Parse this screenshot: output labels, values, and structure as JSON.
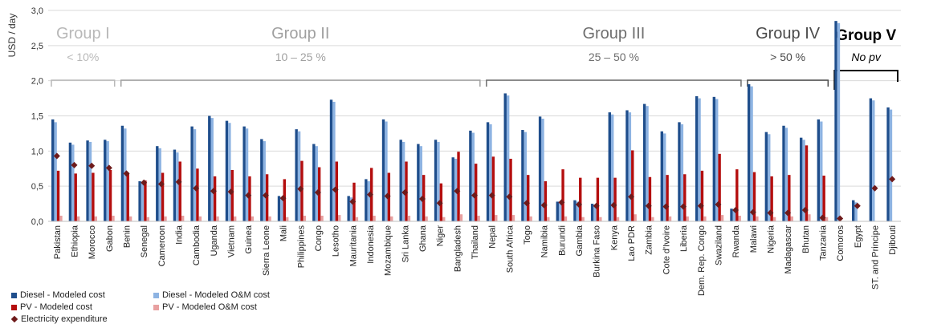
{
  "chart_data": {
    "type": "bar",
    "ylabel": "USD / day",
    "ylim": [
      0,
      3.0
    ],
    "y_ticks": [
      "0,0",
      "0,5",
      "1,0",
      "1,5",
      "2,0",
      "2,5",
      "3,0"
    ],
    "grid": true,
    "legend_position": "bottom-left",
    "categories": [
      "Pakistan",
      "Ethiopia",
      "Morocco",
      "Gabon",
      "Benin",
      "Senegal",
      "Cameroon",
      "India",
      "Cambodia",
      "Uganda",
      "Vietnam",
      "Guinea",
      "Sierra Leone",
      "Mali",
      "Philippines",
      "Congo",
      "Lesotho",
      "Mauritania",
      "Indonesia",
      "Mozambique",
      "Sri Lanka",
      "Ghana",
      "Niger",
      "Bangladesh",
      "Thailand",
      "Nepal",
      "South Africa",
      "Togo",
      "Namibia",
      "Burundi",
      "Gambia",
      "Burkina Faso",
      "Kenya",
      "Lao PDR",
      "Zambia",
      "Cote d'Ivoire",
      "Liberia",
      "Dem. Rep. Congo",
      "Swaziland",
      "Rwanda",
      "Malawi",
      "Nigeria",
      "Madagascar",
      "Bhutan",
      "Tanzania",
      "Comoros",
      "Egypt",
      "ST. and Principe",
      "Djibouti"
    ],
    "series": [
      {
        "name": "Diesel - Modeled cost",
        "color": "#1f4e8c",
        "values": [
          1.45,
          1.12,
          1.15,
          1.16,
          1.36,
          0.57,
          1.07,
          1.02,
          1.35,
          1.5,
          1.43,
          1.35,
          1.17,
          0.36,
          1.31,
          1.1,
          1.73,
          0.36,
          0.6,
          1.45,
          1.16,
          1.1,
          1.16,
          0.91,
          1.29,
          1.41,
          1.82,
          1.3,
          1.49,
          0.28,
          0.3,
          0.25,
          1.55,
          1.58,
          1.67,
          1.28,
          1.41,
          1.78,
          1.77,
          0.18,
          1.95,
          1.27,
          1.36,
          1.19,
          1.45,
          2.85,
          0.3,
          1.75,
          1.62
        ]
      },
      {
        "name": "Diesel - Modeled O&M cost",
        "color": "#8db3e2",
        "values": [
          1.41,
          1.09,
          1.13,
          1.14,
          1.32,
          0.55,
          1.04,
          0.98,
          1.31,
          1.47,
          1.4,
          1.32,
          1.14,
          0.34,
          1.28,
          1.07,
          1.7,
          0.34,
          0.57,
          1.42,
          1.13,
          1.07,
          1.13,
          0.89,
          1.26,
          1.38,
          1.79,
          1.27,
          1.46,
          0.26,
          0.28,
          0.23,
          1.52,
          1.55,
          1.64,
          1.25,
          1.38,
          1.75,
          1.74,
          0.16,
          1.92,
          1.24,
          1.33,
          1.16,
          1.42,
          2.82,
          0.27,
          1.72,
          1.59
        ]
      },
      {
        "name": "PV - Modeled cost",
        "color": "#b40e0e",
        "values": [
          0.72,
          0.68,
          0.69,
          0.73,
          0.69,
          0.58,
          0.69,
          0.85,
          0.75,
          0.64,
          0.73,
          0.64,
          0.67,
          0.6,
          0.86,
          0.77,
          0.85,
          0.55,
          0.76,
          0.69,
          0.85,
          0.66,
          0.54,
          0.99,
          0.82,
          0.92,
          0.89,
          0.66,
          0.57,
          0.74,
          0.62,
          0.62,
          0.62,
          1.01,
          0.63,
          0.66,
          0.67,
          0.72,
          0.96,
          0.74,
          0.7,
          0.64,
          0.66,
          1.08,
          0.65,
          null,
          null,
          null,
          null
        ]
      },
      {
        "name": "PV - Modeled O&M cost",
        "color": "#e8a0a0",
        "values": [
          0.08,
          0.07,
          0.07,
          0.08,
          0.07,
          0.06,
          0.07,
          0.08,
          0.07,
          0.07,
          0.07,
          0.07,
          0.07,
          0.06,
          0.08,
          0.08,
          0.09,
          0.06,
          0.08,
          0.07,
          0.08,
          0.07,
          0.06,
          0.1,
          0.08,
          0.09,
          0.09,
          0.07,
          0.06,
          0.07,
          0.06,
          0.06,
          0.06,
          0.1,
          0.06,
          0.07,
          0.07,
          0.07,
          0.09,
          0.08,
          0.07,
          0.06,
          0.07,
          0.1,
          0.06,
          null,
          null,
          null,
          null
        ]
      },
      {
        "name": "Electricity expenditure",
        "color": "#6e1a1a",
        "marker": "diamond",
        "values": [
          0.93,
          0.8,
          0.79,
          0.76,
          0.68,
          0.55,
          0.53,
          0.56,
          0.47,
          0.43,
          0.42,
          0.37,
          0.37,
          0.33,
          0.46,
          0.41,
          0.45,
          0.28,
          0.38,
          0.36,
          0.41,
          0.32,
          0.26,
          0.43,
          0.37,
          0.37,
          0.35,
          0.26,
          0.23,
          0.27,
          0.24,
          0.22,
          0.23,
          0.35,
          0.22,
          0.21,
          0.21,
          0.22,
          0.24,
          0.16,
          0.13,
          0.12,
          0.12,
          0.16,
          0.05,
          0.04,
          0.22,
          0.47,
          0.6
        ]
      }
    ],
    "groups": [
      {
        "name": "Group I",
        "range": "< 10%",
        "start": 0,
        "end": 3,
        "color": "#b8b8b8"
      },
      {
        "name": "Group II",
        "range": "10 – 25 %",
        "start": 4,
        "end": 24,
        "color": "#a0a0a0"
      },
      {
        "name": "Group III",
        "range": "25 – 50 %",
        "start": 25,
        "end": 39,
        "color": "#6f6f6f"
      },
      {
        "name": "Group IV",
        "range": "> 50 %",
        "start": 40,
        "end": 44,
        "color": "#4a4a4a"
      },
      {
        "name": "Group V",
        "range": "No pv",
        "start": 45,
        "end": 48,
        "color": "#000000"
      }
    ]
  },
  "legend": {
    "items": [
      {
        "label": "Diesel - Modeled cost",
        "color": "#1f4e8c",
        "shape": "square"
      },
      {
        "label": "Diesel - Modeled O&M cost",
        "color": "#8db3e2",
        "shape": "square"
      },
      {
        "label": "PV - Modeled cost",
        "color": "#b40e0e",
        "shape": "square"
      },
      {
        "label": "PV - Modeled O&M cost",
        "color": "#e8a0a0",
        "shape": "square"
      },
      {
        "label": "Electricity expenditure",
        "color": "#6e1a1a",
        "shape": "diamond"
      }
    ]
  }
}
